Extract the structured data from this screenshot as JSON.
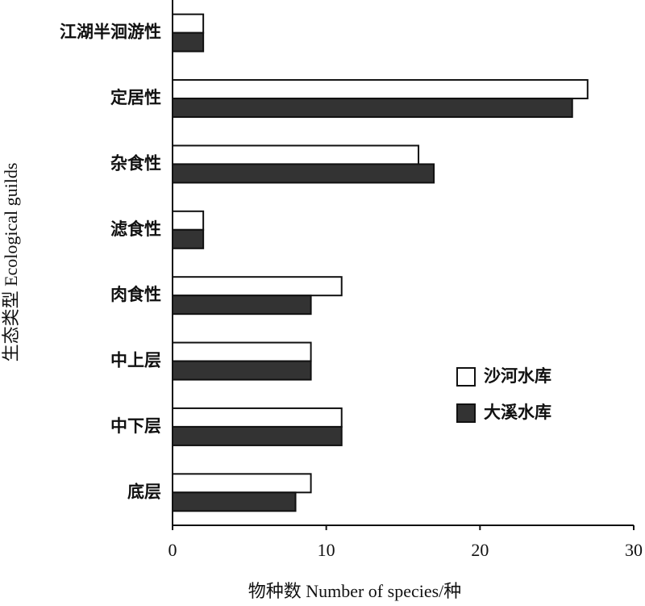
{
  "chart_data": {
    "type": "hbar",
    "x_label": "物种数 Number of species/种",
    "y_label": "生态类型 Ecological guilds",
    "categories": [
      "江湖半洄游性",
      "定居性",
      "杂食性",
      "滤食性",
      "肉食性",
      "中上层",
      "中下层",
      "底层"
    ],
    "series": [
      {
        "name": "沙河水库",
        "color": "#ffffff",
        "values": [
          2,
          27,
          16,
          2,
          11,
          9,
          11,
          9
        ]
      },
      {
        "name": "大溪水库",
        "color": "#333333",
        "values": [
          2,
          26,
          17,
          2,
          9,
          9,
          11,
          8
        ]
      }
    ],
    "xlim": [
      0,
      30
    ],
    "xticks": [
      0,
      10,
      20,
      30
    ],
    "grid": false,
    "legend": "right"
  }
}
